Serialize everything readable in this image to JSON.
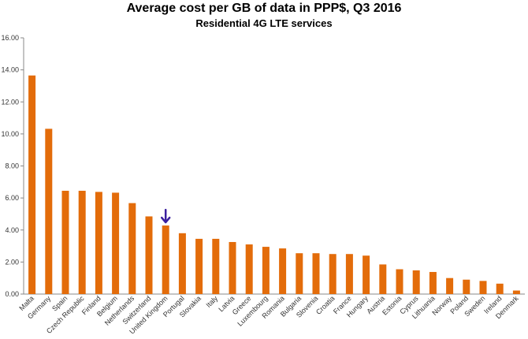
{
  "chart_data": {
    "type": "bar",
    "title": "Average cost per GB of data in PPP$, Q3 2016",
    "subtitle": "Residential 4G LTE services",
    "xlabel": "",
    "ylabel": "",
    "ylim": [
      0,
      16
    ],
    "yticks": [
      "0.00",
      "2.00",
      "4.00",
      "6.00",
      "8.00",
      "10.00",
      "12.00",
      "14.00",
      "16.00"
    ],
    "grid": false,
    "categories": [
      "Malta",
      "Germany",
      "Spain",
      "Czech Republic",
      "Finland",
      "Belgium",
      "Netherlands",
      "Switzerland",
      "United Kingdom",
      "Portugal",
      "Slovakia",
      "Italy",
      "Latvia",
      "Greece",
      "Luxembourg",
      "Romania",
      "Bulgaria",
      "Slovenia",
      "Croatia",
      "France",
      "Hungary",
      "Austria",
      "Estonia",
      "Cyprus",
      "Lithuania",
      "Norway",
      "Poland",
      "Sweden",
      "Ireland",
      "Denmark"
    ],
    "values": [
      13.65,
      10.32,
      6.45,
      6.45,
      6.38,
      6.33,
      5.68,
      4.85,
      4.28,
      3.8,
      3.45,
      3.45,
      3.25,
      3.1,
      2.95,
      2.85,
      2.55,
      2.55,
      2.5,
      2.5,
      2.4,
      1.85,
      1.55,
      1.48,
      1.38,
      1.0,
      0.9,
      0.82,
      0.65,
      0.22
    ],
    "bar_color": "#e36c0a",
    "highlight": {
      "category": "United Kingdom",
      "marker": "down-arrow-icon",
      "color": "#3a1f9e"
    }
  }
}
